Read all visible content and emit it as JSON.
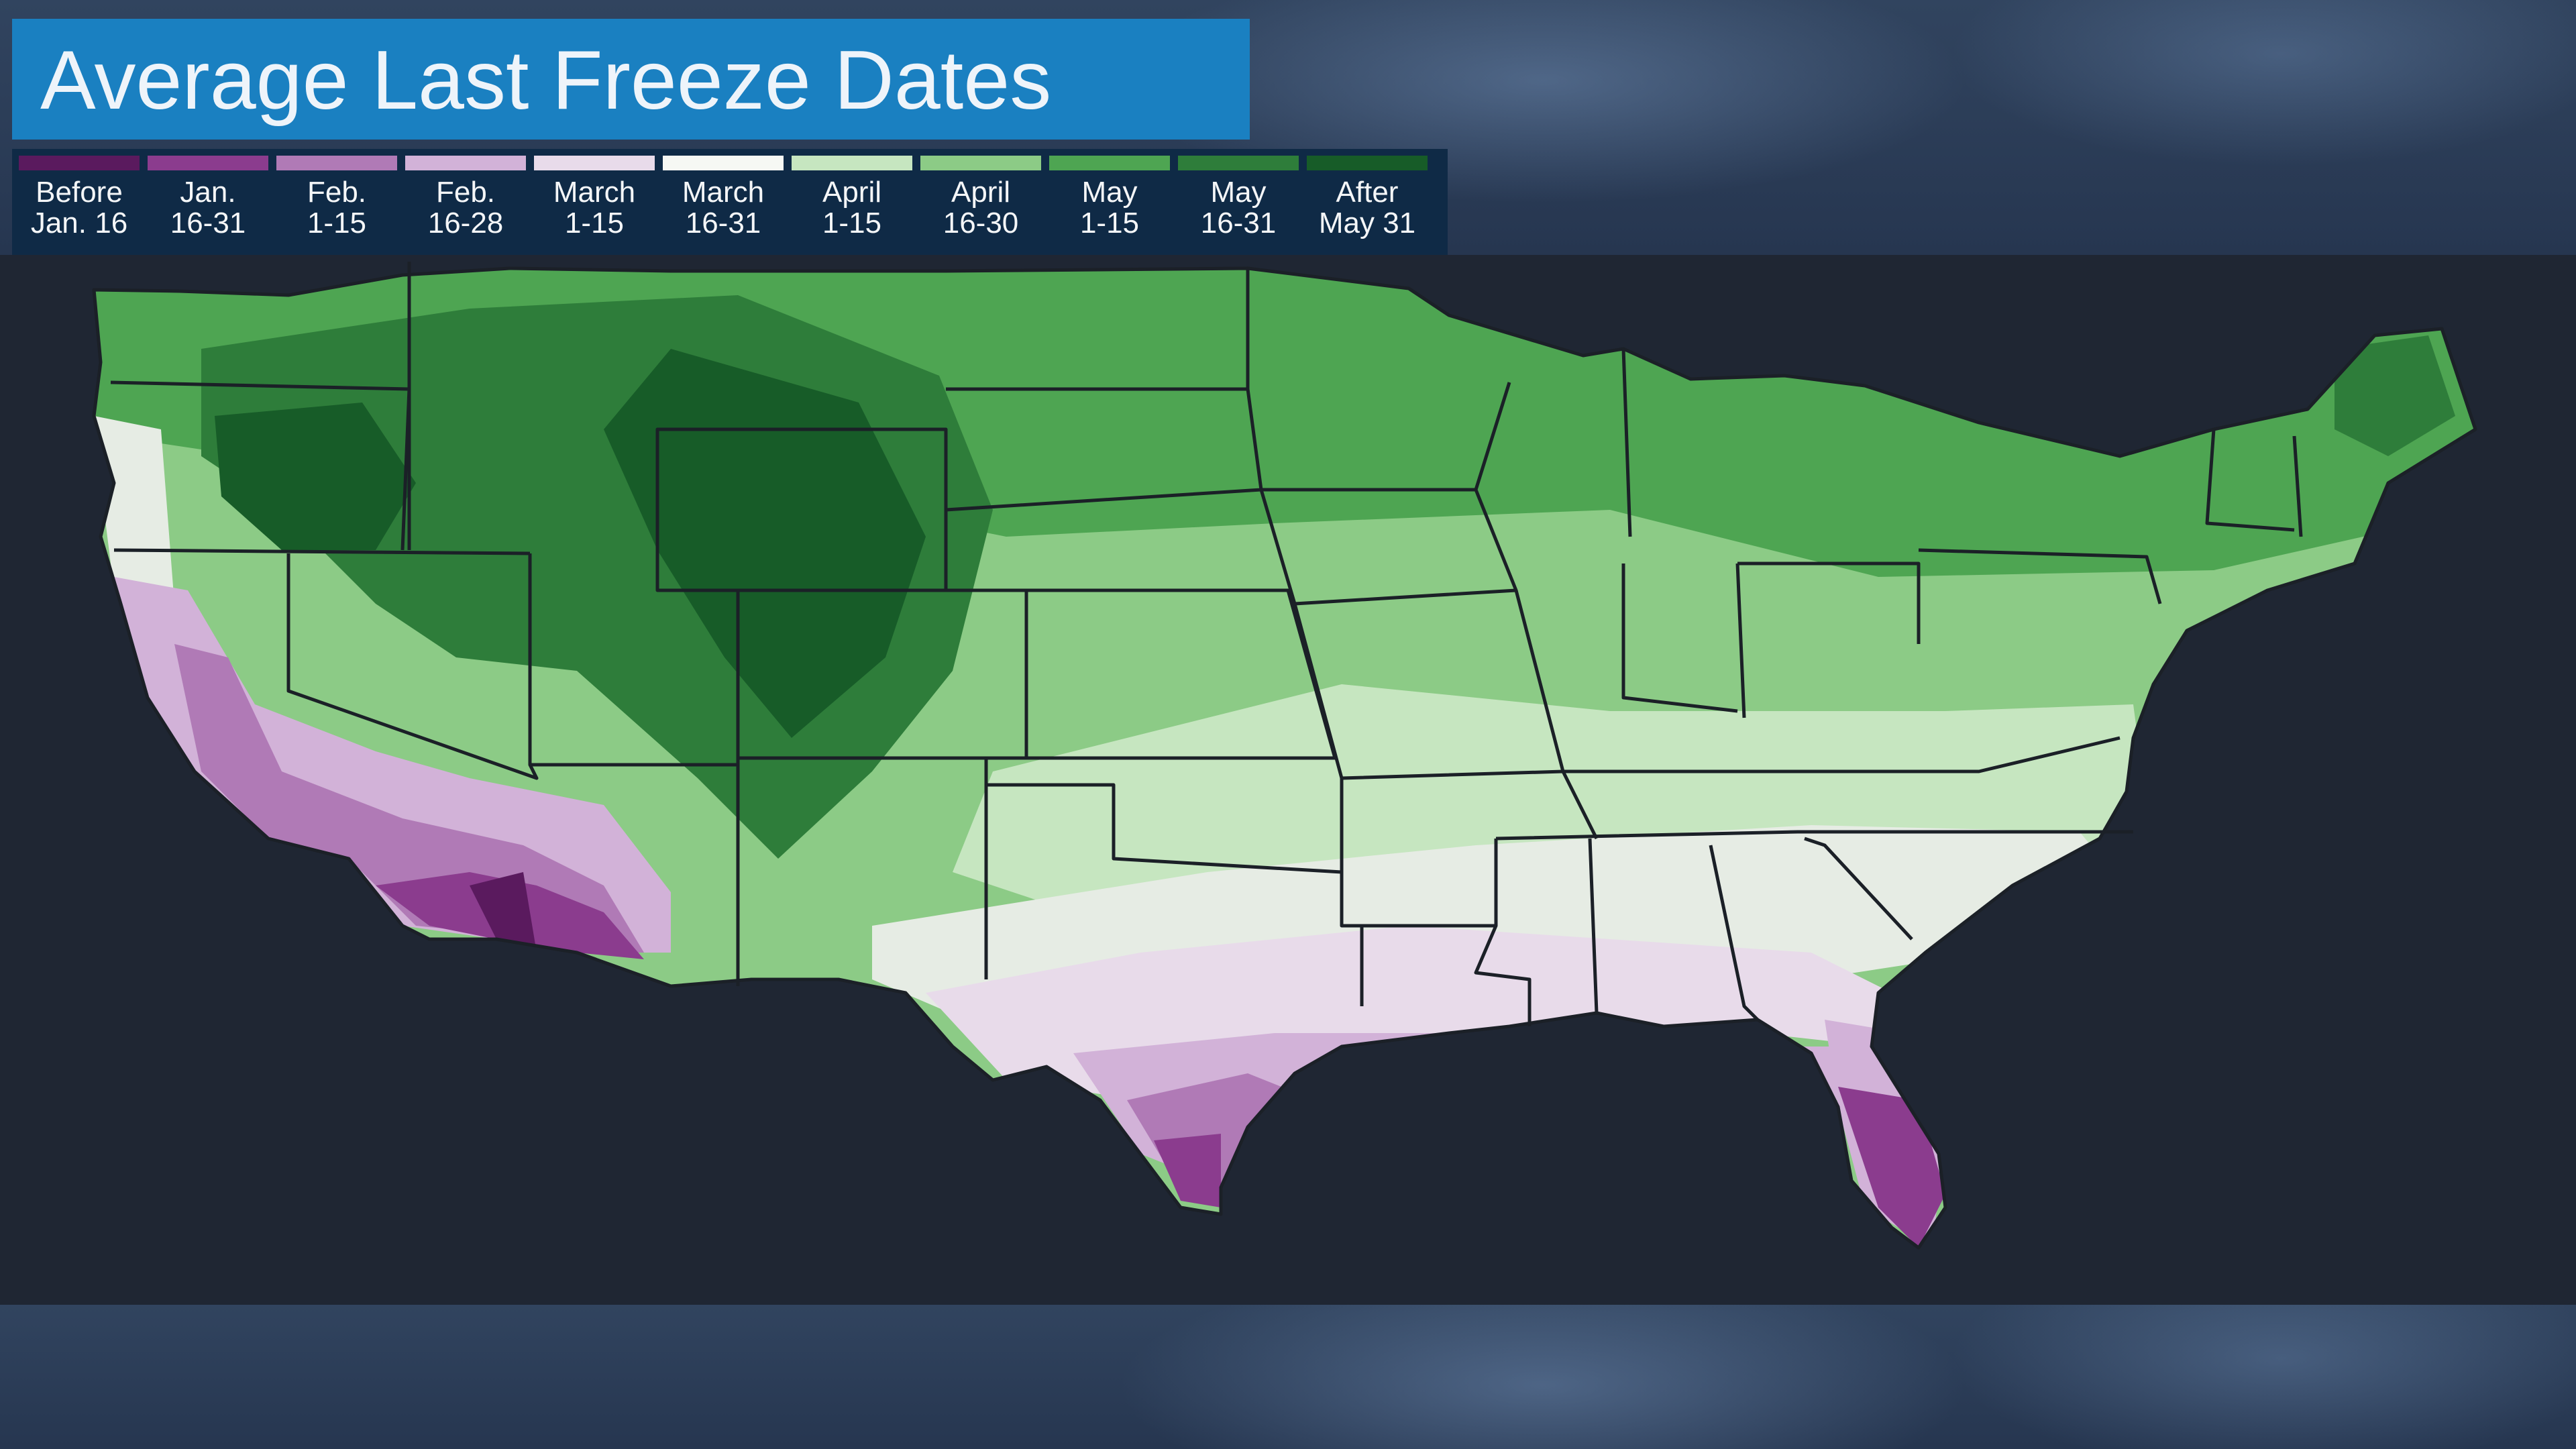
{
  "title": "Average Last Freeze Dates",
  "legend": [
    {
      "line1": "Before",
      "line2": "Jan. 16",
      "color": "#5a1a5e"
    },
    {
      "line1": "Jan.",
      "line2": "16-31",
      "color": "#8b3c8e"
    },
    {
      "line1": "Feb.",
      "line2": "1-15",
      "color": "#b07ab6"
    },
    {
      "line1": "Feb.",
      "line2": "16-28",
      "color": "#d2b2d8"
    },
    {
      "line1": "March",
      "line2": "1-15",
      "color": "#e8dbea"
    },
    {
      "line1": "March",
      "line2": "16-31",
      "color": "#f6f8f4"
    },
    {
      "line1": "April",
      "line2": "1-15",
      "color": "#c6e6c0"
    },
    {
      "line1": "April",
      "line2": "16-30",
      "color": "#8ccb86"
    },
    {
      "line1": "May",
      "line2": "1-15",
      "color": "#4ea552"
    },
    {
      "line1": "May",
      "line2": "16-31",
      "color": "#2e7d3a"
    },
    {
      "line1": "After",
      "line2": "May 31",
      "color": "#175c28"
    }
  ],
  "colors": {
    "title_bg": "#1a80c1",
    "legend_bg": "#0f2a46",
    "state_border": "#1b2027",
    "map_background": "#1f2633"
  }
}
